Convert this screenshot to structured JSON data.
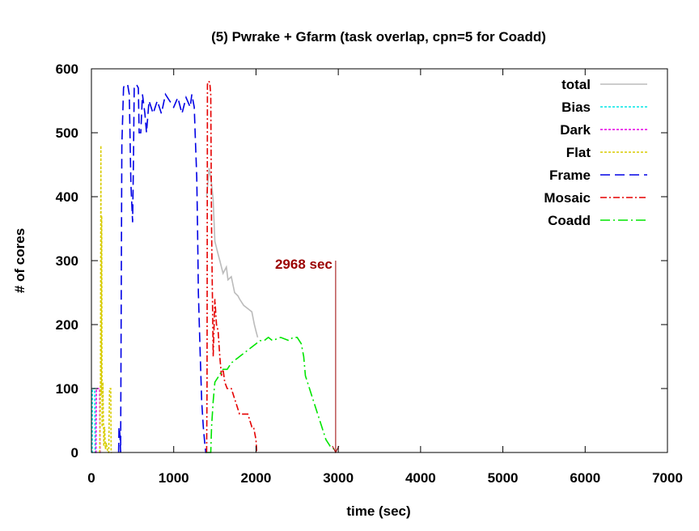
{
  "chart_data": {
    "type": "line",
    "title": "(5) Pwrake + Gfarm (task overlap, cpn=5 for Coadd)",
    "xlabel": "time (sec)",
    "ylabel": "# of cores",
    "xlim": [
      0,
      7000
    ],
    "ylim": [
      0,
      600
    ],
    "xticks": [
      "0",
      "1000",
      "2000",
      "3000",
      "4000",
      "5000",
      "6000",
      "7000"
    ],
    "yticks": [
      "0",
      "100",
      "200",
      "300",
      "400",
      "500",
      "600"
    ],
    "grid": false,
    "legend_position": "top-right",
    "annotation": {
      "text": "2968 sec",
      "x": 2968,
      "y_from": 300,
      "y_to": 0,
      "color": "#9b0000"
    },
    "series": [
      {
        "name": "total",
        "color": "#bbbbbb",
        "dash": "",
        "x": [
          1400,
          1430,
          1460,
          1480,
          1500,
          1540,
          1560,
          1600,
          1640,
          1660,
          1700,
          1740,
          1780,
          1800,
          1850,
          1900,
          1950,
          1980,
          2000,
          2020
        ],
        "y": [
          400,
          445,
          420,
          395,
          330,
          310,
          300,
          280,
          290,
          270,
          275,
          250,
          245,
          240,
          230,
          225,
          220,
          200,
          190,
          180
        ]
      },
      {
        "name": "Bias",
        "color": "#00e5e5",
        "dash": "3,2",
        "x": [
          5,
          10,
          12,
          40,
          45,
          50
        ],
        "y": [
          0,
          0,
          100,
          100,
          0,
          0
        ]
      },
      {
        "name": "Dark",
        "color": "#e500e5",
        "dash": "3,2",
        "x": [
          50,
          55,
          60,
          100,
          105,
          110
        ],
        "y": [
          0,
          0,
          100,
          100,
          0,
          0
        ]
      },
      {
        "name": "Flat",
        "color": "#d8cc00",
        "dash": "3,2",
        "x": [
          100,
          105,
          110,
          115,
          120,
          125,
          130,
          140,
          150,
          160,
          170,
          180,
          200,
          210,
          220,
          235,
          240,
          250
        ],
        "y": [
          0,
          50,
          110,
          480,
          90,
          370,
          40,
          110,
          10,
          40,
          5,
          15,
          0,
          0,
          100,
          100,
          0,
          0
        ]
      },
      {
        "name": "Frame",
        "color": "#0000e5",
        "dash": "12,6",
        "x": [
          330,
          335,
          345,
          355,
          370,
          390,
          400,
          420,
          440,
          460,
          480,
          500,
          510,
          520,
          530,
          550,
          570,
          580,
          600,
          620,
          650,
          670,
          700,
          750,
          800,
          850,
          900,
          950,
          1000,
          1050,
          1100,
          1150,
          1200,
          1220,
          1250,
          1260,
          1280,
          1290,
          1300,
          1320,
          1340,
          1360,
          1380,
          1390,
          1400
        ],
        "y": [
          0,
          40,
          30,
          0,
          480,
          570,
          575,
          575,
          575,
          560,
          420,
          360,
          450,
          570,
          575,
          575,
          570,
          500,
          500,
          560,
          530,
          500,
          550,
          530,
          550,
          530,
          560,
          550,
          540,
          555,
          530,
          555,
          540,
          560,
          540,
          500,
          430,
          350,
          250,
          160,
          80,
          40,
          10,
          0,
          0
        ]
      },
      {
        "name": "Mosaic",
        "color": "#e50000",
        "dash": "8,3,2,3",
        "x": [
          1400,
          1405,
          1410,
          1415,
          1420,
          1430,
          1440,
          1450,
          1460,
          1480,
          1500,
          1520,
          1540,
          1560,
          1580,
          1600,
          1620,
          1650,
          1700,
          1750,
          1800,
          1850,
          1900,
          1950,
          1970,
          2000,
          2010,
          2020
        ],
        "y": [
          0,
          100,
          575,
          580,
          580,
          580,
          575,
          560,
          350,
          150,
          240,
          200,
          190,
          150,
          120,
          130,
          110,
          100,
          100,
          80,
          60,
          60,
          60,
          40,
          40,
          20,
          0,
          0
        ]
      },
      {
        "name": "Coadd",
        "color": "#00e500",
        "dash": "12,4,2,4",
        "x": [
          1400,
          1450,
          1460,
          1470,
          1480,
          1500,
          1550,
          1600,
          1650,
          1700,
          1800,
          1900,
          2000,
          2050,
          2100,
          2150,
          2200,
          2300,
          2400,
          2450,
          2500,
          2550,
          2580,
          2600,
          2700,
          2750,
          2800,
          2850,
          2900,
          2950,
          2968
        ],
        "y": [
          0,
          0,
          40,
          60,
          80,
          110,
          120,
          130,
          130,
          140,
          150,
          160,
          170,
          175,
          175,
          180,
          175,
          180,
          175,
          180,
          180,
          170,
          150,
          120,
          80,
          60,
          40,
          20,
          10,
          5,
          0
        ]
      }
    ]
  }
}
